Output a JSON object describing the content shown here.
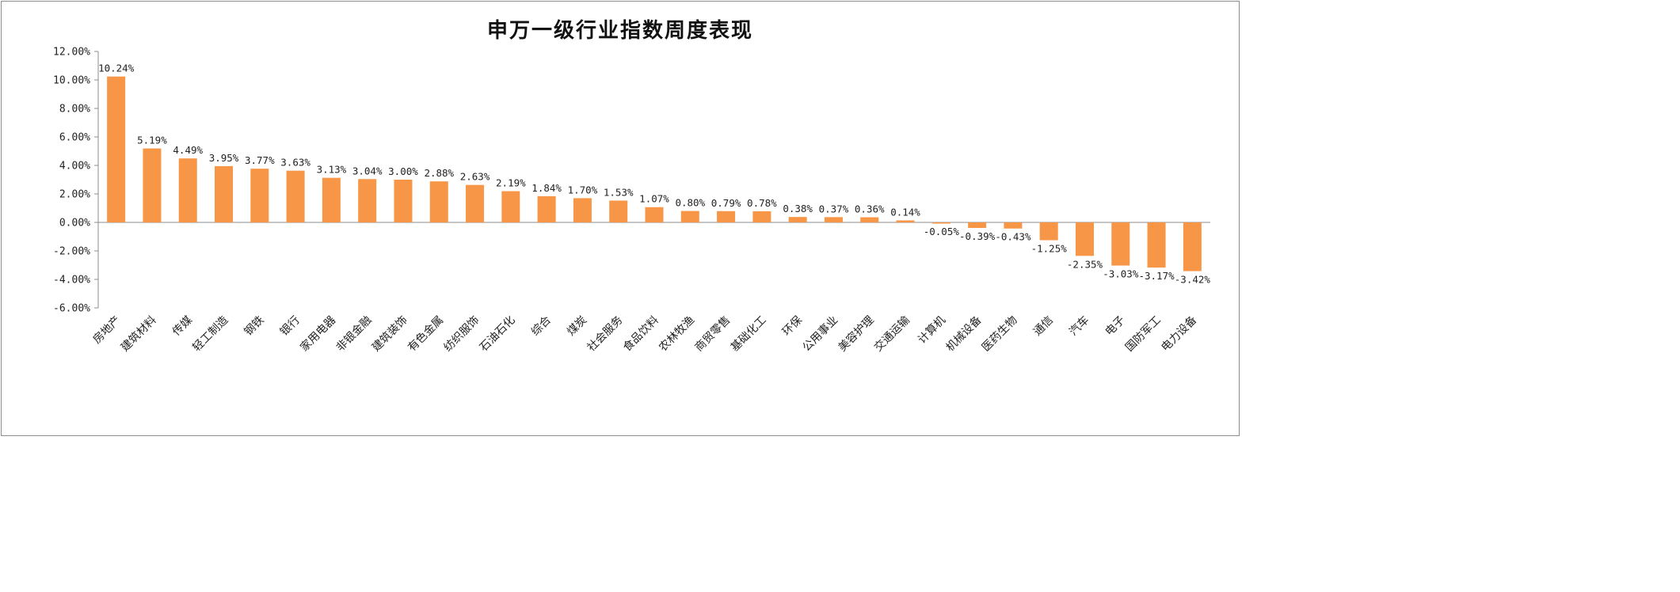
{
  "chart_data": {
    "type": "bar",
    "title": "申万一级行业指数周度表现",
    "bar_color": "#F79646",
    "ylim": [
      -6,
      12
    ],
    "yticks": [
      "12.00%",
      "10.00%",
      "8.00%",
      "6.00%",
      "4.00%",
      "2.00%",
      "0.00%",
      "-2.00%",
      "-4.00%",
      "-6.00%"
    ],
    "categories": [
      "房地产",
      "建筑材料",
      "传媒",
      "轻工制造",
      "钢铁",
      "银行",
      "家用电器",
      "非银金融",
      "建筑装饰",
      "有色金属",
      "纺织服饰",
      "石油石化",
      "综合",
      "煤炭",
      "社会服务",
      "食品饮料",
      "农林牧渔",
      "商贸零售",
      "基础化工",
      "环保",
      "公用事业",
      "美容护理",
      "交通运输",
      "计算机",
      "机械设备",
      "医药生物",
      "通信",
      "汽车",
      "电子",
      "国防军工",
      "电力设备"
    ],
    "values": [
      10.24,
      5.19,
      4.49,
      3.95,
      3.77,
      3.63,
      3.13,
      3.04,
      3.0,
      2.88,
      2.63,
      2.19,
      1.84,
      1.7,
      1.53,
      1.07,
      0.8,
      0.79,
      0.78,
      0.38,
      0.37,
      0.36,
      0.14,
      -0.05,
      -0.39,
      -0.43,
      -1.25,
      -2.35,
      -3.03,
      -3.17,
      -3.42
    ],
    "data_labels": [
      "10.24%",
      "5.19%",
      "4.49%",
      "3.95%",
      "3.77%",
      "3.63%",
      "3.13%",
      "3.04%",
      "3.00%",
      "2.88%",
      "2.63%",
      "2.19%",
      "1.84%",
      "1.70%",
      "1.53%",
      "1.07%",
      "0.80%",
      "0.79%",
      "0.78%",
      "0.38%",
      "0.37%",
      "0.36%",
      "0.14%",
      "-0.05%",
      "-0.39%",
      "-0.43%",
      "-1.25%",
      "-2.35%",
      "-3.03%",
      "-3.17%",
      "-3.42%"
    ],
    "legend": "none",
    "grid": false
  }
}
